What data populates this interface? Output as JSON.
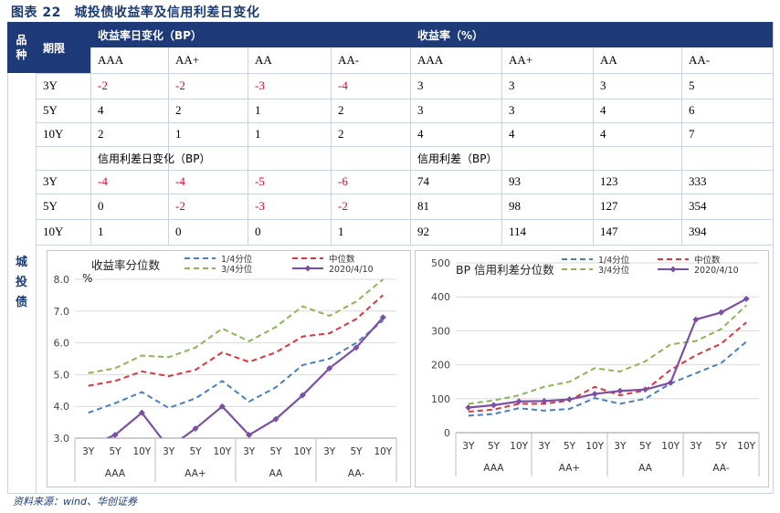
{
  "title": "图表 22　城投债收益率及信用利差日变化",
  "header": {
    "variety": "品种",
    "term": "期限",
    "yield_change": "收益率日变化（BP）",
    "yield": "收益率（%）",
    "ratings": [
      "AAA",
      "AA+",
      "AA",
      "AA-"
    ]
  },
  "row_label": "城投债",
  "yield_rows": [
    {
      "term": "3Y",
      "chg": [
        "-2",
        "-2",
        "-3",
        "-4"
      ],
      "val": [
        "3",
        "3",
        "3",
        "5"
      ]
    },
    {
      "term": "5Y",
      "chg": [
        "4",
        "2",
        "1",
        "2"
      ],
      "val": [
        "3",
        "3",
        "4",
        "6"
      ]
    },
    {
      "term": "10Y",
      "chg": [
        "2",
        "1",
        "1",
        "2"
      ],
      "val": [
        "4",
        "4",
        "4",
        "7"
      ]
    }
  ],
  "spread_header": {
    "change": "信用利差日变化（BP）",
    "spread": "信用利差（BP）"
  },
  "spread_rows": [
    {
      "term": "3Y",
      "chg": [
        "-4",
        "-4",
        "-5",
        "-6"
      ],
      "val": [
        "74",
        "93",
        "123",
        "333"
      ]
    },
    {
      "term": "5Y",
      "chg": [
        "0",
        "-2",
        "-3",
        "-2"
      ],
      "val": [
        "81",
        "98",
        "127",
        "354"
      ]
    },
    {
      "term": "10Y",
      "chg": [
        "1",
        "0",
        "0",
        "1"
      ],
      "val": [
        "92",
        "114",
        "147",
        "394"
      ]
    }
  ],
  "colors": {
    "header_bg": "#1f3a79",
    "negative": "#e0002b",
    "q1": "#4a7ec2",
    "median": "#d9363e",
    "q3": "#8db553",
    "current": "#7b4fa3"
  },
  "chart_data": [
    {
      "type": "line",
      "title": "收益率分位数",
      "ylabel": "%",
      "ylim": [
        3.0,
        8.0
      ],
      "yticks": [
        "3.0",
        "4.0",
        "5.0",
        "6.0",
        "7.0",
        "8.0"
      ],
      "categories": [
        "3Y",
        "5Y",
        "10Y",
        "3Y",
        "5Y",
        "10Y",
        "3Y",
        "5Y",
        "10Y",
        "3Y",
        "5Y",
        "10Y"
      ],
      "groups": [
        "AAA",
        "AA+",
        "AA",
        "AA-"
      ],
      "grid": true,
      "legend_position": "top",
      "series": [
        {
          "name": "1/4分位",
          "values": [
            3.8,
            4.1,
            4.45,
            3.95,
            4.25,
            4.8,
            4.15,
            4.6,
            5.3,
            5.5,
            6.0,
            6.7
          ]
        },
        {
          "name": "中位数",
          "values": [
            4.65,
            4.8,
            5.1,
            4.95,
            5.15,
            5.7,
            5.4,
            5.7,
            6.2,
            6.3,
            6.75,
            7.5
          ]
        },
        {
          "name": "3/4分位",
          "values": [
            5.05,
            5.2,
            5.6,
            5.55,
            5.85,
            6.45,
            6.05,
            6.5,
            7.15,
            6.85,
            7.3,
            8.0
          ]
        },
        {
          "name": "2020/4/10",
          "values": [
            2.75,
            3.1,
            3.8,
            2.7,
            3.3,
            4.0,
            3.1,
            3.6,
            4.35,
            5.2,
            5.85,
            6.8
          ]
        }
      ]
    },
    {
      "type": "line",
      "title": "BP 信用利差分位数",
      "ylim": [
        0,
        500
      ],
      "yticks": [
        "0",
        "100",
        "200",
        "300",
        "400",
        "500"
      ],
      "categories": [
        "3Y",
        "5Y",
        "10Y",
        "3Y",
        "5Y",
        "10Y",
        "3Y",
        "5Y",
        "10Y",
        "3Y",
        "5Y",
        "10Y"
      ],
      "groups": [
        "AAA",
        "AA+",
        "AA",
        "AA-"
      ],
      "grid": true,
      "legend_position": "top",
      "series": [
        {
          "name": "1/4分位",
          "values": [
            50,
            55,
            72,
            65,
            70,
            102,
            85,
            100,
            145,
            175,
            205,
            268
          ]
        },
        {
          "name": "中位数",
          "values": [
            62,
            68,
            85,
            85,
            95,
            135,
            110,
            125,
            185,
            228,
            262,
            325
          ]
        },
        {
          "name": "3/4分位",
          "values": [
            85,
            95,
            110,
            135,
            150,
            190,
            180,
            210,
            260,
            270,
            305,
            375
          ]
        },
        {
          "name": "2020/4/10",
          "values": [
            74,
            81,
            92,
            93,
            98,
            114,
            123,
            127,
            147,
            333,
            354,
            394
          ]
        }
      ]
    }
  ],
  "source": "资料来源：wind、华创证券"
}
